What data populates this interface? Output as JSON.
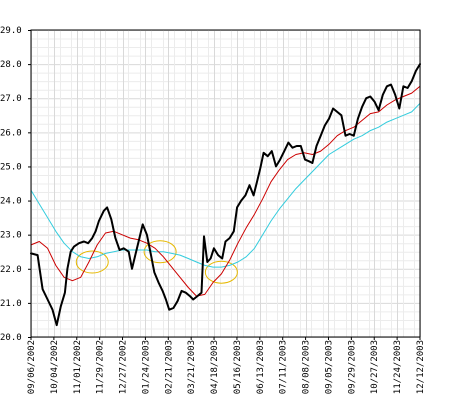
{
  "chart_data": {
    "type": "line",
    "title": "",
    "xlabel": "",
    "ylabel": "",
    "ylim": [
      20.0,
      29.0
    ],
    "yticks": [
      "20.0",
      "21.0",
      "22.0",
      "23.0",
      "24.0",
      "25.0",
      "26.0",
      "27.0",
      "28.0",
      "29.0"
    ],
    "xtick_labels": [
      "09/06/2002",
      "10/04/2002",
      "11/01/2002",
      "11/29/2002",
      "12/27/2002",
      "01/24/2003",
      "02/21/2003",
      "03/21/2003",
      "04/18/2003",
      "05/16/2003",
      "06/13/2003",
      "07/11/2003",
      "08/08/2003",
      "09/05/2003",
      "09/29/2003",
      "10/27/2003",
      "11/24/2003",
      "12/12/2003"
    ],
    "grid": true,
    "legend": "none",
    "colors": {
      "price": "#000000",
      "ma_short": "#cc0000",
      "ma_long": "#33ccdd",
      "highlight": "#e6b800"
    },
    "highlights": [
      {
        "x": 3.7,
        "y": 22.2
      },
      {
        "x": 7.8,
        "y": 22.5
      },
      {
        "x": 11.5,
        "y": 21.9
      }
    ],
    "series": [
      {
        "values": [
          [
            0,
            22.45
          ],
          [
            0.4,
            22.4
          ],
          [
            0.7,
            21.4
          ],
          [
            1.0,
            21.1
          ],
          [
            1.3,
            20.8
          ],
          [
            1.55,
            20.35
          ],
          [
            1.8,
            20.9
          ],
          [
            2.05,
            21.3
          ],
          [
            2.2,
            22.0
          ],
          [
            2.4,
            22.5
          ],
          [
            2.6,
            22.65
          ],
          [
            2.9,
            22.75
          ],
          [
            3.2,
            22.8
          ],
          [
            3.45,
            22.75
          ],
          [
            3.7,
            22.9
          ],
          [
            3.9,
            23.1
          ],
          [
            4.1,
            23.4
          ],
          [
            4.4,
            23.7
          ],
          [
            4.6,
            23.8
          ],
          [
            4.85,
            23.45
          ],
          [
            5.1,
            22.9
          ],
          [
            5.35,
            22.55
          ],
          [
            5.6,
            22.6
          ],
          [
            5.9,
            22.5
          ],
          [
            6.1,
            22.0
          ],
          [
            6.3,
            22.4
          ],
          [
            6.5,
            22.8
          ],
          [
            6.75,
            23.3
          ],
          [
            7.0,
            23.0
          ],
          [
            7.25,
            22.4
          ],
          [
            7.45,
            21.9
          ],
          [
            7.7,
            21.6
          ],
          [
            7.95,
            21.35
          ],
          [
            8.15,
            21.1
          ],
          [
            8.35,
            20.8
          ],
          [
            8.6,
            20.85
          ],
          [
            8.85,
            21.05
          ],
          [
            9.1,
            21.35
          ],
          [
            9.35,
            21.3
          ],
          [
            9.6,
            21.2
          ],
          [
            9.8,
            21.1
          ],
          [
            10.05,
            21.2
          ],
          [
            10.3,
            21.3
          ],
          [
            10.45,
            22.95
          ],
          [
            10.65,
            22.2
          ],
          [
            10.85,
            22.3
          ],
          [
            11.05,
            22.6
          ],
          [
            11.3,
            22.4
          ],
          [
            11.55,
            22.3
          ],
          [
            11.75,
            22.8
          ],
          [
            12.0,
            22.9
          ],
          [
            12.25,
            23.1
          ],
          [
            12.45,
            23.8
          ],
          [
            12.7,
            24.0
          ],
          [
            12.95,
            24.15
          ],
          [
            13.2,
            24.45
          ],
          [
            13.45,
            24.15
          ],
          [
            13.65,
            24.55
          ],
          [
            13.85,
            24.95
          ],
          [
            14.05,
            25.4
          ],
          [
            14.3,
            25.3
          ],
          [
            14.55,
            25.45
          ],
          [
            14.8,
            25.0
          ],
          [
            15.05,
            25.2
          ],
          [
            15.3,
            25.45
          ],
          [
            15.55,
            25.7
          ],
          [
            15.8,
            25.55
          ],
          [
            16.05,
            25.6
          ],
          [
            16.3,
            25.6
          ],
          [
            16.55,
            25.2
          ],
          [
            16.8,
            25.15
          ],
          [
            17.0,
            25.1
          ],
          [
            17.25,
            25.6
          ],
          [
            17.5,
            25.9
          ],
          [
            17.75,
            26.2
          ],
          [
            18.0,
            26.4
          ],
          [
            18.25,
            26.7
          ],
          [
            18.5,
            26.6
          ],
          [
            18.75,
            26.5
          ],
          [
            19.0,
            25.9
          ],
          [
            19.25,
            25.95
          ],
          [
            19.5,
            25.9
          ],
          [
            19.75,
            26.4
          ],
          [
            20.0,
            26.75
          ],
          [
            20.25,
            27.0
          ],
          [
            20.5,
            27.05
          ],
          [
            20.75,
            26.9
          ],
          [
            21.0,
            26.65
          ],
          [
            21.25,
            27.1
          ],
          [
            21.5,
            27.35
          ],
          [
            21.75,
            27.4
          ],
          [
            22.0,
            27.1
          ],
          [
            22.25,
            26.7
          ],
          [
            22.5,
            27.35
          ],
          [
            22.75,
            27.3
          ],
          [
            23.0,
            27.5
          ],
          [
            23.25,
            27.8
          ],
          [
            23.5,
            28.0
          ]
        ]
      },
      {
        "values": [
          [
            0,
            22.7
          ],
          [
            0.5,
            22.8
          ],
          [
            1.0,
            22.6
          ],
          [
            1.5,
            22.1
          ],
          [
            2.0,
            21.75
          ],
          [
            2.5,
            21.65
          ],
          [
            3.0,
            21.75
          ],
          [
            3.5,
            22.2
          ],
          [
            4.0,
            22.7
          ],
          [
            4.5,
            23.05
          ],
          [
            5.0,
            23.1
          ],
          [
            5.5,
            23.0
          ],
          [
            6.0,
            22.9
          ],
          [
            6.5,
            22.85
          ],
          [
            7.0,
            22.75
          ],
          [
            7.5,
            22.6
          ],
          [
            8.0,
            22.35
          ],
          [
            8.5,
            22.05
          ],
          [
            9.0,
            21.75
          ],
          [
            9.5,
            21.45
          ],
          [
            10.0,
            21.2
          ],
          [
            10.5,
            21.25
          ],
          [
            11.0,
            21.6
          ],
          [
            11.5,
            21.85
          ],
          [
            12.0,
            22.25
          ],
          [
            12.5,
            22.75
          ],
          [
            13.0,
            23.2
          ],
          [
            13.5,
            23.6
          ],
          [
            14.0,
            24.05
          ],
          [
            14.5,
            24.55
          ],
          [
            15.0,
            24.9
          ],
          [
            15.5,
            25.2
          ],
          [
            16.0,
            25.35
          ],
          [
            16.5,
            25.4
          ],
          [
            17.0,
            25.35
          ],
          [
            17.5,
            25.45
          ],
          [
            18.0,
            25.65
          ],
          [
            18.5,
            25.9
          ],
          [
            19.0,
            26.05
          ],
          [
            19.5,
            26.15
          ],
          [
            20.0,
            26.35
          ],
          [
            20.5,
            26.55
          ],
          [
            21.0,
            26.6
          ],
          [
            21.5,
            26.8
          ],
          [
            22.0,
            26.95
          ],
          [
            22.5,
            27.05
          ],
          [
            23.0,
            27.15
          ],
          [
            23.5,
            27.35
          ]
        ]
      },
      {
        "values": [
          [
            0,
            24.3
          ],
          [
            0.5,
            23.9
          ],
          [
            1.0,
            23.5
          ],
          [
            1.5,
            23.1
          ],
          [
            2.0,
            22.75
          ],
          [
            2.5,
            22.5
          ],
          [
            3.0,
            22.35
          ],
          [
            3.5,
            22.3
          ],
          [
            4.0,
            22.35
          ],
          [
            4.5,
            22.45
          ],
          [
            5.0,
            22.5
          ],
          [
            5.5,
            22.55
          ],
          [
            6.0,
            22.55
          ],
          [
            6.5,
            22.55
          ],
          [
            7.0,
            22.55
          ],
          [
            7.5,
            22.5
          ],
          [
            8.0,
            22.5
          ],
          [
            8.5,
            22.45
          ],
          [
            9.0,
            22.4
          ],
          [
            9.5,
            22.3
          ],
          [
            10.0,
            22.2
          ],
          [
            10.5,
            22.1
          ],
          [
            11.0,
            22.05
          ],
          [
            11.5,
            22.05
          ],
          [
            12.0,
            22.1
          ],
          [
            12.5,
            22.2
          ],
          [
            13.0,
            22.35
          ],
          [
            13.5,
            22.6
          ],
          [
            14.0,
            23.0
          ],
          [
            14.5,
            23.4
          ],
          [
            15.0,
            23.75
          ],
          [
            15.5,
            24.05
          ],
          [
            16.0,
            24.35
          ],
          [
            16.5,
            24.6
          ],
          [
            17.0,
            24.85
          ],
          [
            17.5,
            25.1
          ],
          [
            18.0,
            25.35
          ],
          [
            18.5,
            25.5
          ],
          [
            19.0,
            25.65
          ],
          [
            19.5,
            25.8
          ],
          [
            20.0,
            25.9
          ],
          [
            20.5,
            26.05
          ],
          [
            21.0,
            26.15
          ],
          [
            21.5,
            26.3
          ],
          [
            22.0,
            26.4
          ],
          [
            22.5,
            26.5
          ],
          [
            23.0,
            26.6
          ],
          [
            23.5,
            26.85
          ]
        ]
      }
    ]
  }
}
